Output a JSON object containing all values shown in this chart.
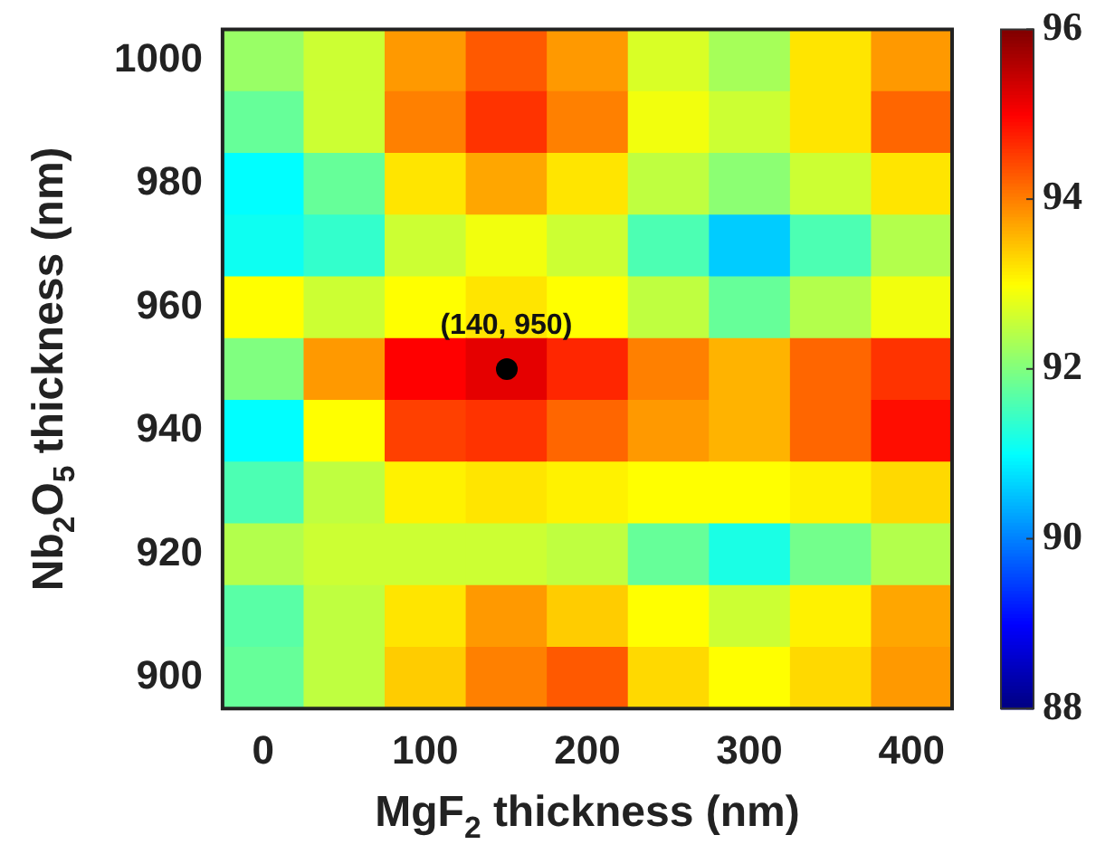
{
  "chart_data": {
    "type": "heatmap",
    "xlabel": "MgF$_{2}$ thickness (nm)",
    "ylabel": "Nb$_{2}$O$_{5}$ thickness (nm)",
    "categories": [
      "0",
      null,
      "100",
      null,
      "200",
      null,
      "300",
      null,
      "400"
    ],
    "y_categories": [
      "1000",
      null,
      "980",
      null,
      "960",
      null,
      "940",
      null,
      "920",
      null,
      "900"
    ],
    "cells": [
      [
        92.2,
        92.6,
        93.8,
        94.3,
        93.8,
        92.7,
        92.3,
        93.2,
        93.8
      ],
      [
        91.8,
        92.6,
        94.0,
        94.6,
        94.0,
        92.9,
        92.6,
        93.2,
        94.2
      ],
      [
        91.0,
        91.8,
        93.2,
        93.7,
        93.2,
        92.5,
        92.1,
        92.6,
        93.2
      ],
      [
        91.1,
        91.4,
        92.6,
        92.9,
        92.6,
        91.6,
        90.6,
        91.6,
        92.4
      ],
      [
        93.0,
        92.6,
        93.0,
        93.2,
        93.0,
        92.5,
        91.8,
        92.4,
        92.9
      ],
      [
        92.0,
        93.8,
        95.0,
        95.2,
        94.7,
        94.0,
        93.6,
        94.2,
        94.6
      ],
      [
        91.0,
        93.0,
        94.5,
        94.6,
        94.2,
        93.8,
        93.6,
        94.2,
        94.9
      ],
      [
        91.6,
        92.5,
        93.1,
        93.2,
        93.1,
        93.0,
        93.0,
        93.1,
        93.3
      ],
      [
        92.4,
        92.6,
        92.6,
        92.6,
        92.5,
        91.8,
        91.2,
        91.9,
        92.4
      ],
      [
        91.7,
        92.5,
        93.2,
        93.8,
        93.4,
        93.0,
        92.6,
        93.1,
        93.7
      ],
      [
        91.8,
        92.5,
        93.4,
        94.0,
        94.3,
        93.3,
        93.0,
        93.3,
        93.8
      ]
    ],
    "clim": [
      88,
      96
    ],
    "cticks": [
      88,
      90,
      92,
      94,
      96
    ],
    "annotations": [
      "(140, 950)"
    ]
  }
}
